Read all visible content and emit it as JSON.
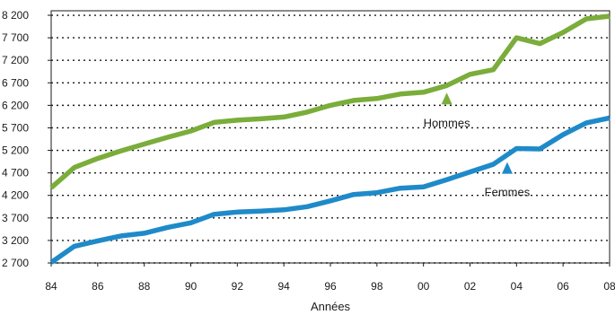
{
  "chart_data": {
    "type": "line",
    "title": "",
    "xlabel": "Années",
    "ylabel": "",
    "x": [
      1984,
      1985,
      1986,
      1987,
      1988,
      1989,
      1990,
      1991,
      1992,
      1993,
      1994,
      1995,
      1996,
      1997,
      1998,
      1999,
      2000,
      2001,
      2002,
      2003,
      2004,
      2005,
      2006,
      2007,
      2008
    ],
    "x_ticks": [
      1984,
      1986,
      1988,
      1990,
      1992,
      1994,
      1996,
      1998,
      2000,
      2002,
      2004,
      2006,
      2008
    ],
    "x_tick_labels": [
      "84",
      "86",
      "88",
      "90",
      "92",
      "94",
      "96",
      "98",
      "00",
      "02",
      "04",
      "06",
      "08"
    ],
    "ylim": [
      2700,
      8300
    ],
    "y_ticks": [
      2700,
      3200,
      3700,
      4200,
      4700,
      5200,
      5700,
      6200,
      6700,
      7200,
      7700,
      8200
    ],
    "y_tick_labels": [
      "2 700",
      "3 200",
      "3 700",
      "4 200",
      "4 700",
      "5 200",
      "5 700",
      "6 200",
      "6 700",
      "7 200",
      "7 700",
      "8 200"
    ],
    "grid": "horizontal-dotted",
    "legend": "none",
    "series": [
      {
        "name": "Hommes",
        "color": "#7aad3a",
        "label_year": 2001,
        "values": [
          4370,
          4820,
          5020,
          5190,
          5340,
          5490,
          5630,
          5820,
          5870,
          5900,
          5940,
          6050,
          6200,
          6310,
          6350,
          6450,
          6490,
          6640,
          6890,
          6990,
          7700,
          7570,
          7820,
          8120,
          8180
        ]
      },
      {
        "name": "Femmes",
        "color": "#1f8ac9",
        "label_year": 2003.6,
        "values": [
          2710,
          3070,
          3190,
          3300,
          3360,
          3490,
          3590,
          3780,
          3830,
          3850,
          3880,
          3950,
          4080,
          4220,
          4260,
          4360,
          4390,
          4550,
          4720,
          4890,
          5240,
          5230,
          5550,
          5810,
          5920
        ]
      }
    ]
  }
}
